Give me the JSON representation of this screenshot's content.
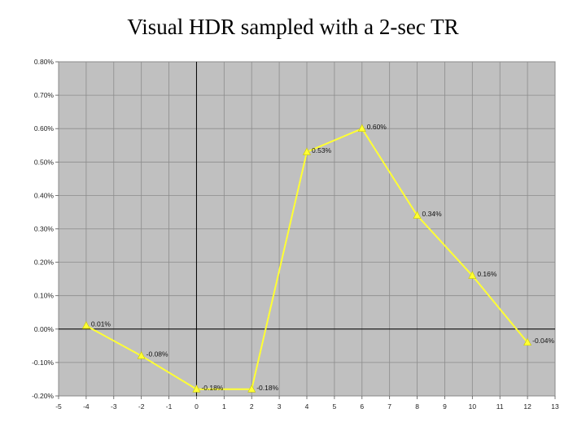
{
  "slide": {
    "title": "Visual HDR sampled with a 2-sec TR"
  },
  "chart_data": {
    "type": "line",
    "title": "Visual HDR sampled with a 2-sec TR",
    "xlabel": "",
    "ylabel": "",
    "xlim": [
      -5,
      13
    ],
    "ylim": [
      -0.2,
      0.8
    ],
    "x_ticks": [
      -5,
      -4,
      -3,
      -2,
      -1,
      0,
      1,
      2,
      3,
      4,
      5,
      6,
      7,
      8,
      9,
      10,
      11,
      12,
      13
    ],
    "y_ticks": [
      -0.2,
      -0.1,
      0.0,
      0.1,
      0.2,
      0.3,
      0.4,
      0.5,
      0.6,
      0.7,
      0.8
    ],
    "y_tick_labels": [
      "-0.20%",
      "-0.10%",
      "0.00%",
      "0.10%",
      "0.20%",
      "0.30%",
      "0.40%",
      "0.50%",
      "0.60%",
      "0.70%",
      "0.80%"
    ],
    "grid": true,
    "background_color": "#c0c0c0",
    "series": [
      {
        "color": "#ffff33",
        "marker": "triangle",
        "x": [
          -4,
          -2,
          0,
          2,
          4,
          6,
          8,
          10,
          12
        ],
        "y": [
          0.01,
          -0.08,
          -0.18,
          -0.18,
          0.53,
          0.6,
          0.34,
          0.16,
          -0.04
        ],
        "labels": [
          "0.01%",
          "-0.08%",
          "-0.18%",
          "-0.18%",
          "0.53%",
          "0.60%",
          "0.34%",
          "0.16%",
          "-0.04%"
        ]
      }
    ]
  }
}
